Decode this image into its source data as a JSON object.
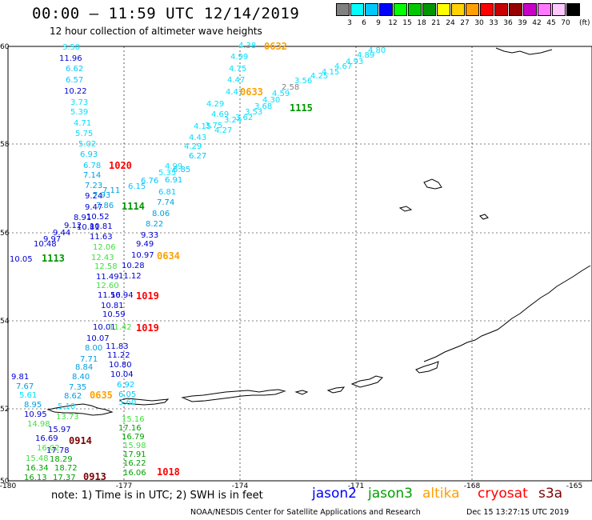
{
  "header": {
    "title": "00:00 – 11:59 UTC 12/14/2019",
    "subtitle": "12 hour collection of altimeter wave heights"
  },
  "legend": {
    "unit": "(ft)",
    "bins": [
      {
        "label": "3",
        "color": "#808080"
      },
      {
        "label": "6",
        "color": "#00ffff"
      },
      {
        "label": "9",
        "color": "#00c8ff"
      },
      {
        "label": "12",
        "color": "#0000ff"
      },
      {
        "label": "15",
        "color": "#00ff00"
      },
      {
        "label": "18",
        "color": "#00c800"
      },
      {
        "label": "21",
        "color": "#009600"
      },
      {
        "label": "24",
        "color": "#ffff00"
      },
      {
        "label": "27",
        "color": "#ffd200"
      },
      {
        "label": "30",
        "color": "#ffa000"
      },
      {
        "label": "33",
        "color": "#ff0000"
      },
      {
        "label": "36",
        "color": "#c80000"
      },
      {
        "label": "39",
        "color": "#960000"
      },
      {
        "label": "42",
        "color": "#c800c8"
      },
      {
        "label": "45",
        "color": "#ff78ff"
      },
      {
        "label": "70",
        "color": "#ffc8ff"
      },
      {
        "label": "",
        "color": "#000000"
      }
    ]
  },
  "axes": {
    "lat_labels": [
      "60",
      "58",
      "56",
      "54",
      "52",
      "50"
    ],
    "lon_labels": [
      "-180",
      "-177",
      "-174",
      "-171",
      "-168",
      "-165"
    ]
  },
  "swh_labels": [
    {
      "text": "3.50",
      "c": "#00e0ff"
    },
    {
      "text": "11.96",
      "c": "#0000d0"
    },
    {
      "text": "6.62",
      "c": "#00c8ff"
    },
    {
      "text": "6.57",
      "c": "#00c8ff"
    },
    {
      "text": "10.22",
      "c": "#0000d0"
    },
    {
      "text": "3.73",
      "c": "#00e0ff"
    },
    {
      "text": "5.39",
      "c": "#00e0ff"
    },
    {
      "text": "4.71",
      "c": "#00e0ff"
    },
    {
      "text": "5.75",
      "c": "#00e0ff"
    },
    {
      "text": "5.02",
      "c": "#00e0ff"
    },
    {
      "text": "6.93",
      "c": "#00c8ff"
    },
    {
      "text": "6.78",
      "c": "#00c8ff"
    },
    {
      "text": "7.14",
      "c": "#00a0e0"
    },
    {
      "text": "7.23",
      "c": "#00a0e0"
    },
    {
      "text": "9.24",
      "c": "#0000d0"
    },
    {
      "text": "9.47",
      "c": "#0000d0"
    },
    {
      "text": "8.91",
      "c": "#0000d0"
    },
    {
      "text": "10.52",
      "c": "#0000d0"
    },
    {
      "text": "9.12",
      "c": "#0000d0"
    },
    {
      "text": "9.44",
      "c": "#0000d0"
    },
    {
      "text": "10.81",
      "c": "#0000d0"
    },
    {
      "text": "9.97",
      "c": "#0000d0"
    },
    {
      "text": "10.81",
      "c": "#0000d0"
    },
    {
      "text": "10.48",
      "c": "#0000d0"
    },
    {
      "text": "11.63",
      "c": "#0000d0"
    },
    {
      "text": "10.05",
      "c": "#0000d0"
    },
    {
      "text": "7.93",
      "c": "#00a0e0"
    },
    {
      "text": "7.86",
      "c": "#00a0e0"
    },
    {
      "text": "7.11",
      "c": "#00a0e0"
    },
    {
      "text": "12.06",
      "c": "#40e040"
    },
    {
      "text": "12.43",
      "c": "#40e040"
    },
    {
      "text": "12.58",
      "c": "#40e040"
    },
    {
      "text": "11.49",
      "c": "#0000d0"
    },
    {
      "text": "12.60",
      "c": "#40e040"
    },
    {
      "text": "11.56",
      "c": "#0000d0"
    },
    {
      "text": "10.94",
      "c": "#0000d0"
    },
    {
      "text": "10.81",
      "c": "#0000d0"
    },
    {
      "text": "10.59",
      "c": "#0000d0"
    },
    {
      "text": "10.01",
      "c": "#0000d0"
    },
    {
      "text": "11.42",
      "c": "#40e040"
    },
    {
      "text": "10.07",
      "c": "#0000d0"
    },
    {
      "text": "8.00",
      "c": "#00a0e0"
    },
    {
      "text": "11.83",
      "c": "#0000d0"
    },
    {
      "text": "7.71",
      "c": "#00a0e0"
    },
    {
      "text": "11.22",
      "c": "#0000d0"
    },
    {
      "text": "8.84",
      "c": "#00a0e0"
    },
    {
      "text": "10.80",
      "c": "#0000d0"
    },
    {
      "text": "8.40",
      "c": "#00a0e0"
    },
    {
      "text": "10.04",
      "c": "#0000d0"
    },
    {
      "text": "9.81",
      "c": "#0000d0"
    },
    {
      "text": "7.67",
      "c": "#00a0e0"
    },
    {
      "text": "7.35",
      "c": "#00a0e0"
    },
    {
      "text": "6.92",
      "c": "#00c8ff"
    },
    {
      "text": "5.61",
      "c": "#00e0ff"
    },
    {
      "text": "8.62",
      "c": "#00a0e0"
    },
    {
      "text": "6.05",
      "c": "#00c8ff"
    },
    {
      "text": "8.95",
      "c": "#00a0e0"
    },
    {
      "text": "5.18",
      "c": "#00e0ff"
    },
    {
      "text": "5.60",
      "c": "#00e0ff"
    },
    {
      "text": "10.95",
      "c": "#0000d0"
    },
    {
      "text": "13.73",
      "c": "#40e040"
    },
    {
      "text": "14.98",
      "c": "#40e040"
    },
    {
      "text": "15.97",
      "c": "#0000d0"
    },
    {
      "text": "16.69",
      "c": "#0000d0"
    },
    {
      "text": "16.02",
      "c": "#40e040"
    },
    {
      "text": "17.78",
      "c": "#0000d0"
    },
    {
      "text": "15.48",
      "c": "#40e040"
    },
    {
      "text": "18.29",
      "c": "#00a000"
    },
    {
      "text": "16.34",
      "c": "#00a000"
    },
    {
      "text": "18.72",
      "c": "#00a000"
    },
    {
      "text": "16.13",
      "c": "#00a000"
    },
    {
      "text": "17.37",
      "c": "#00a000"
    },
    {
      "text": "17.16",
      "c": "#00a000"
    },
    {
      "text": "16.79",
      "c": "#00a000"
    },
    {
      "text": "15.98",
      "c": "#40e040"
    },
    {
      "text": "17.91",
      "c": "#00a000"
    },
    {
      "text": "16.22",
      "c": "#00a000"
    },
    {
      "text": "16.06",
      "c": "#00a000"
    },
    {
      "text": "15.16",
      "c": "#40e040"
    },
    {
      "text": "4.38",
      "c": "#00e0ff"
    },
    {
      "text": "4.99",
      "c": "#00e0ff"
    },
    {
      "text": "4.75",
      "c": "#00e0ff"
    },
    {
      "text": "4.47",
      "c": "#00e0ff"
    },
    {
      "text": "4.47",
      "c": "#00e0ff"
    },
    {
      "text": "4.29",
      "c": "#00e0ff"
    },
    {
      "text": "4.69",
      "c": "#00e0ff"
    },
    {
      "text": "4.15",
      "c": "#00e0ff"
    },
    {
      "text": "4.43",
      "c": "#00e0ff"
    },
    {
      "text": "4.29",
      "c": "#00e0ff"
    },
    {
      "text": "4.27",
      "c": "#00e0ff"
    },
    {
      "text": "3.75",
      "c": "#00e0ff"
    },
    {
      "text": "3.24",
      "c": "#00e0ff"
    },
    {
      "text": "3.62",
      "c": "#00e0ff"
    },
    {
      "text": "3.53",
      "c": "#00e0ff"
    },
    {
      "text": "3.68",
      "c": "#00e0ff"
    },
    {
      "text": "4.30",
      "c": "#00e0ff"
    },
    {
      "text": "4.59",
      "c": "#00e0ff"
    },
    {
      "text": "2.58",
      "c": "#808080"
    },
    {
      "text": "3.56",
      "c": "#00e0ff"
    },
    {
      "text": "4.25",
      "c": "#00e0ff"
    },
    {
      "text": "4.15",
      "c": "#00e0ff"
    },
    {
      "text": "4.67",
      "c": "#00e0ff"
    },
    {
      "text": "4.93",
      "c": "#00e0ff"
    },
    {
      "text": "4.89",
      "c": "#00e0ff"
    },
    {
      "text": "4.80",
      "c": "#00e0ff"
    },
    {
      "text": "6.27",
      "c": "#00c8ff"
    },
    {
      "text": "4.99",
      "c": "#00e0ff"
    },
    {
      "text": "6.85",
      "c": "#00c8ff"
    },
    {
      "text": "5.35",
      "c": "#00e0ff"
    },
    {
      "text": "6.91",
      "c": "#00c8ff"
    },
    {
      "text": "6.76",
      "c": "#00c8ff"
    },
    {
      "text": "6.15",
      "c": "#00c8ff"
    },
    {
      "text": "6.81",
      "c": "#00c8ff"
    },
    {
      "text": "7.74",
      "c": "#00a0e0"
    },
    {
      "text": "8.06",
      "c": "#00a0e0"
    },
    {
      "text": "8.22",
      "c": "#00a0e0"
    },
    {
      "text": "9.33",
      "c": "#0000d0"
    },
    {
      "text": "9.49",
      "c": "#0000d0"
    },
    {
      "text": "10.97",
      "c": "#0000d0"
    },
    {
      "text": "10.28",
      "c": "#0000d0"
    },
    {
      "text": "11.12",
      "c": "#0000d0"
    }
  ],
  "pass_labels": [
    {
      "text": "0632",
      "c": "#ffa000"
    },
    {
      "text": "0633",
      "c": "#ffa000"
    },
    {
      "text": "1115",
      "c": "#009600"
    },
    {
      "text": "1020",
      "c": "#ff0000"
    },
    {
      "text": "1114",
      "c": "#009600"
    },
    {
      "text": "1113",
      "c": "#009600"
    },
    {
      "text": "0634",
      "c": "#ffa000"
    },
    {
      "text": "1019",
      "c": "#ff0000"
    },
    {
      "text": "1019",
      "c": "#ff0000"
    },
    {
      "text": "0635",
      "c": "#ffa000"
    },
    {
      "text": "0914",
      "c": "#800000"
    },
    {
      "text": "1018",
      "c": "#ff0000"
    },
    {
      "text": "0913",
      "c": "#800000"
    }
  ],
  "footer": {
    "note": "note: 1) Time is in UTC; 2) SWH is in feet",
    "satellites": [
      {
        "name": "jason2",
        "color": "#0000ff"
      },
      {
        "name": "jason3",
        "color": "#00a000"
      },
      {
        "name": "altika",
        "color": "#ffa000"
      },
      {
        "name": "cryosat",
        "color": "#ff0000"
      },
      {
        "name": "s3a",
        "color": "#800000"
      }
    ],
    "credit": "NOAA/NESDIS Center for Satellite Applications and Research",
    "timestamp": "Dec 15 13:27:15 UTC 2019"
  }
}
